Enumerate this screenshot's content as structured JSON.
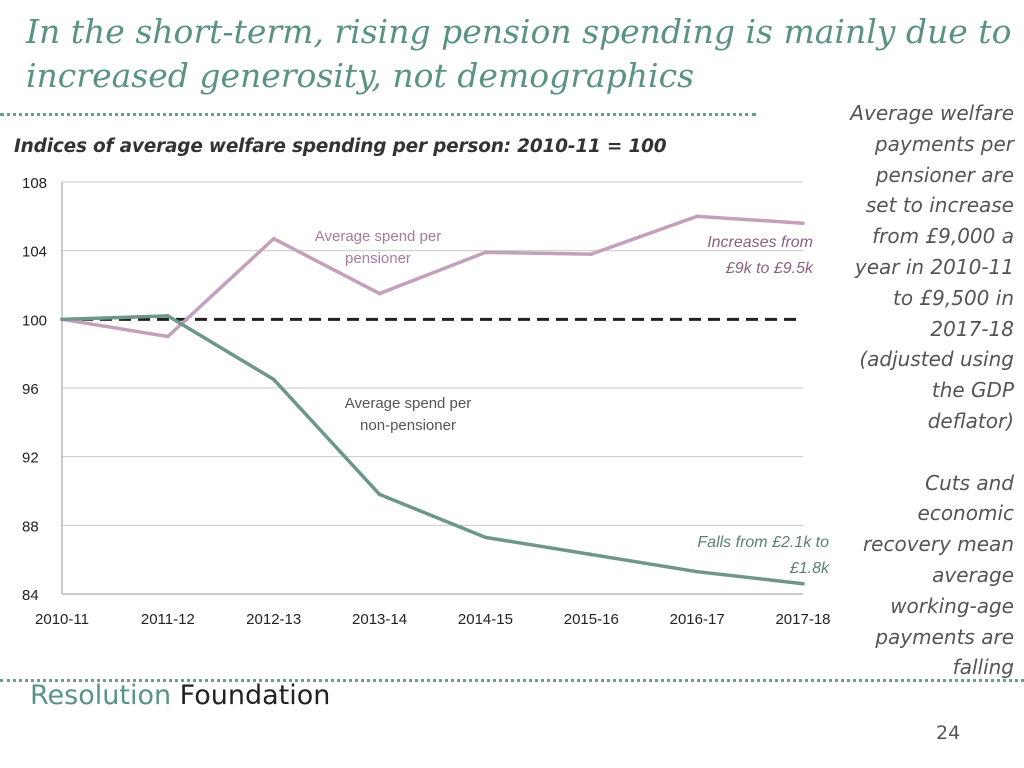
{
  "slide": {
    "title": "In the short-term, rising pension spending is mainly due to increased generosity, not demographics",
    "side_text": [
      "Average welfare payments per pensioner are set to increase from £9,000 a year in 2010-11 to £9,500 in 2017-18 (adjusted using the GDP deflator)",
      "Cuts and economic recovery mean average working-age payments are falling"
    ],
    "brand_first": "Resolution",
    "brand_second": "Foundation",
    "page_number": "24"
  },
  "chart_data": {
    "type": "line",
    "title": "Indices of average welfare spending per person: 2010-11 = 100",
    "categories": [
      "2010-11",
      "2011-12",
      "2012-13",
      "2013-14",
      "2014-15",
      "2015-16",
      "2016-17",
      "2017-18"
    ],
    "ylim": [
      84,
      108
    ],
    "yticks": [
      84,
      88,
      92,
      96,
      100,
      104,
      108
    ],
    "grid": true,
    "baseline": 100,
    "series": [
      {
        "name": "Average spend per pensioner",
        "color": "#c4a0ba",
        "values": [
          100,
          99.0,
          104.7,
          101.5,
          103.9,
          103.8,
          106.0,
          105.6
        ],
        "annotation_lines": [
          "Increases from",
          "£9k to £9.5k"
        ]
      },
      {
        "name": "Average spend per non-pensioner",
        "color": "#6e968c",
        "values": [
          100,
          100.2,
          96.5,
          89.8,
          87.3,
          86.3,
          85.3,
          84.6
        ],
        "annotation_lines": [
          "Falls from £2.1k to",
          "£1.8k"
        ]
      }
    ],
    "series_labels": [
      {
        "series": 0,
        "lines": [
          "Average spend per",
          "pensioner"
        ],
        "color": "#a67b9c"
      },
      {
        "series": 1,
        "lines": [
          "Average spend per",
          "non-pensioner"
        ],
        "color": "#555555"
      }
    ],
    "annotation_colors": [
      "#8a5f83",
      "#5b7f74"
    ]
  }
}
